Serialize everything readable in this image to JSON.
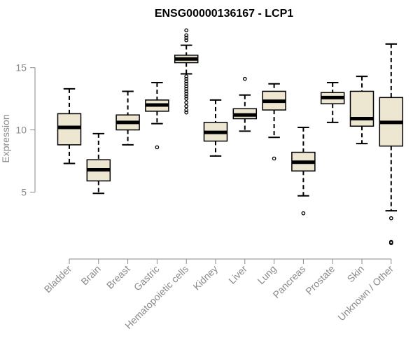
{
  "chart_data": {
    "type": "boxplot",
    "title": "ENSG00000136167 - LCP1",
    "xlabel": "",
    "ylabel": "Expression",
    "ylim": [
      0.3,
      18.3
    ],
    "yticks": [
      5,
      10,
      15
    ],
    "box_fill": "#ede6d0",
    "categories": [
      "Bladder",
      "Brain",
      "Breast",
      "Gastric",
      "Hematopoietic cells",
      "Kidney",
      "Liver",
      "Lung",
      "Pancreas",
      "Prostate",
      "Skin",
      "Unknown / Other"
    ],
    "boxes": [
      {
        "whisker_low": 7.3,
        "q1": 8.8,
        "median": 10.2,
        "q3": 11.3,
        "whisker_high": 13.3,
        "outliers": []
      },
      {
        "whisker_low": 4.9,
        "q1": 5.9,
        "median": 6.8,
        "q3": 7.6,
        "whisker_high": 9.7,
        "outliers": []
      },
      {
        "whisker_low": 8.8,
        "q1": 10.0,
        "median": 10.6,
        "q3": 11.2,
        "whisker_high": 13.1,
        "outliers": []
      },
      {
        "whisker_low": 10.5,
        "q1": 11.5,
        "median": 12.0,
        "q3": 12.4,
        "whisker_high": 13.8,
        "outliers": [
          8.6
        ]
      },
      {
        "whisker_low": 14.5,
        "q1": 15.4,
        "median": 15.7,
        "q3": 16.0,
        "whisker_high": 16.8,
        "outliers": [
          18.0,
          17.6,
          17.4,
          17.2,
          14.3,
          14.1,
          13.9,
          13.7,
          13.5,
          13.3,
          13.1,
          12.9,
          12.7,
          12.5,
          12.2,
          11.9,
          11.6,
          11.4
        ]
      },
      {
        "whisker_low": 7.9,
        "q1": 9.1,
        "median": 9.8,
        "q3": 10.6,
        "whisker_high": 12.4,
        "outliers": []
      },
      {
        "whisker_low": 9.9,
        "q1": 10.9,
        "median": 11.2,
        "q3": 11.7,
        "whisker_high": 12.8,
        "outliers": [
          14.1
        ]
      },
      {
        "whisker_low": 9.4,
        "q1": 11.6,
        "median": 12.3,
        "q3": 13.1,
        "whisker_high": 13.7,
        "outliers": [
          7.7
        ]
      },
      {
        "whisker_low": 4.7,
        "q1": 6.7,
        "median": 7.4,
        "q3": 8.2,
        "whisker_high": 10.2,
        "outliers": [
          3.3
        ]
      },
      {
        "whisker_low": 10.6,
        "q1": 12.1,
        "median": 12.6,
        "q3": 13.0,
        "whisker_high": 13.8,
        "outliers": []
      },
      {
        "whisker_low": 8.9,
        "q1": 10.3,
        "median": 10.9,
        "q3": 13.1,
        "whisker_high": 14.3,
        "outliers": []
      },
      {
        "whisker_low": 3.5,
        "q1": 8.7,
        "median": 10.6,
        "q3": 12.6,
        "whisker_high": 16.9,
        "outliers": [
          2.9,
          1.0,
          0.9
        ]
      }
    ]
  }
}
